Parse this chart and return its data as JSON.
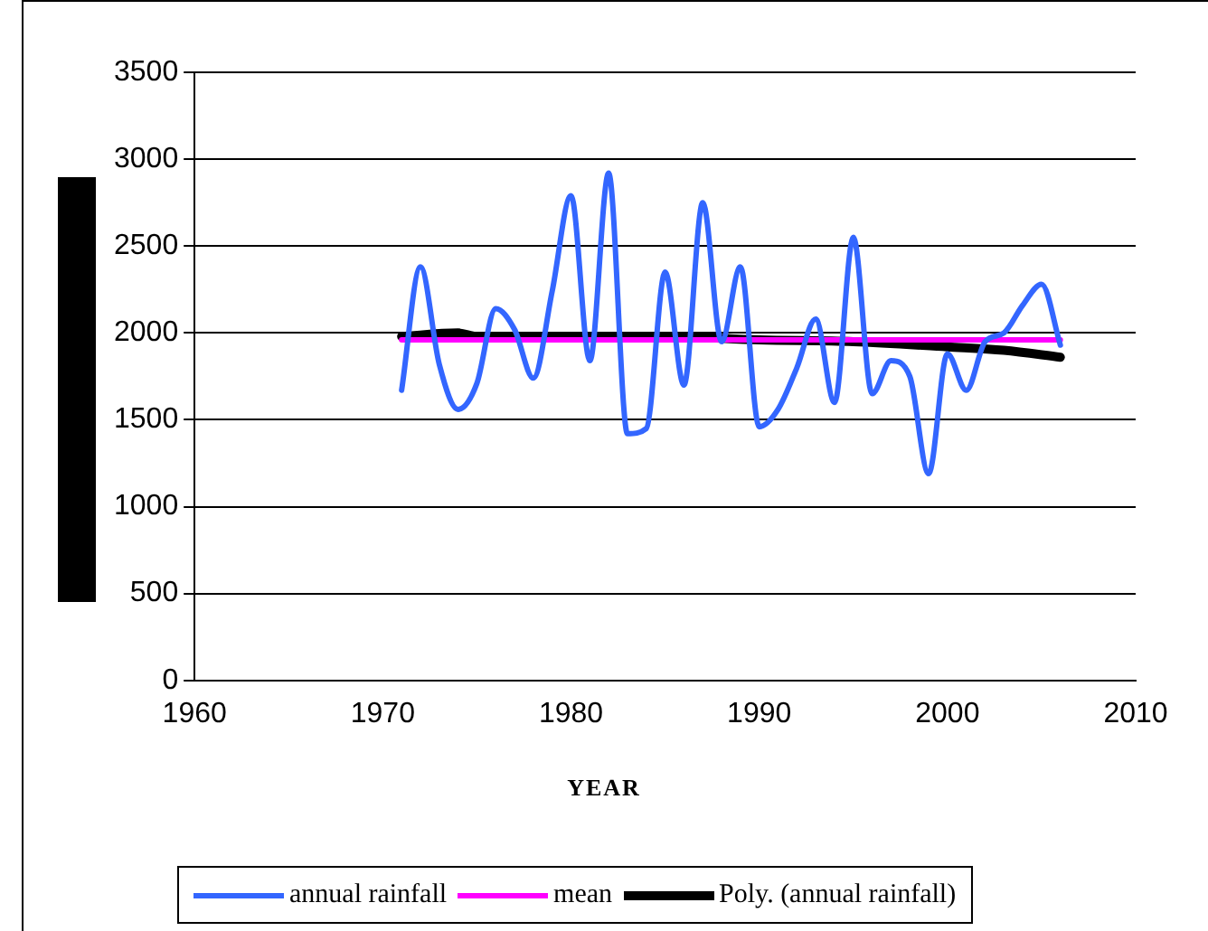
{
  "chart_data": {
    "type": "line",
    "xlabel": "YEAR",
    "x": [
      1971,
      1972,
      1973,
      1974,
      1975,
      1976,
      1977,
      1978,
      1979,
      1980,
      1981,
      1982,
      1983,
      1984,
      1985,
      1986,
      1987,
      1988,
      1989,
      1990,
      1991,
      1992,
      1993,
      1994,
      1995,
      1996,
      1997,
      1998,
      1999,
      2000,
      2001,
      2002,
      2003,
      2004,
      2005,
      2006
    ],
    "series": [
      {
        "name": "annual rainfall",
        "color": "#3366ff",
        "values": [
          1670,
          2380,
          1820,
          1560,
          1710,
          2140,
          2020,
          1740,
          2240,
          2790,
          1840,
          2920,
          1420,
          1450,
          2350,
          1700,
          2750,
          1950,
          2380,
          1460,
          1560,
          1800,
          2080,
          1600,
          2550,
          1650,
          1840,
          1750,
          1190,
          1880,
          1670,
          1950,
          2000,
          2160,
          2280,
          1930
        ]
      },
      {
        "name": "mean",
        "color": "#ff00ff",
        "x": [
          1971,
          2006
        ],
        "values": [
          1960,
          1960
        ]
      },
      {
        "name": "Poly. (annual rainfall)",
        "color": "#000000",
        "x": [
          1971,
          1974,
          1975,
          1980,
          1985,
          1990,
          1995,
          2000,
          2003,
          2006
        ],
        "values": [
          1980,
          2000,
          1980,
          1980,
          1980,
          1960,
          1950,
          1920,
          1900,
          1860
        ]
      }
    ],
    "xlim": [
      1960,
      2010
    ],
    "xticks": [
      1960,
      1970,
      1980,
      1990,
      2000,
      2010
    ],
    "ylim": [
      0,
      3500
    ],
    "yticks": [
      0,
      500,
      1000,
      1500,
      2000,
      2500,
      3000,
      3500
    ],
    "grid": "y",
    "legend": "bottom",
    "marker": "none",
    "line_style": "solid"
  }
}
